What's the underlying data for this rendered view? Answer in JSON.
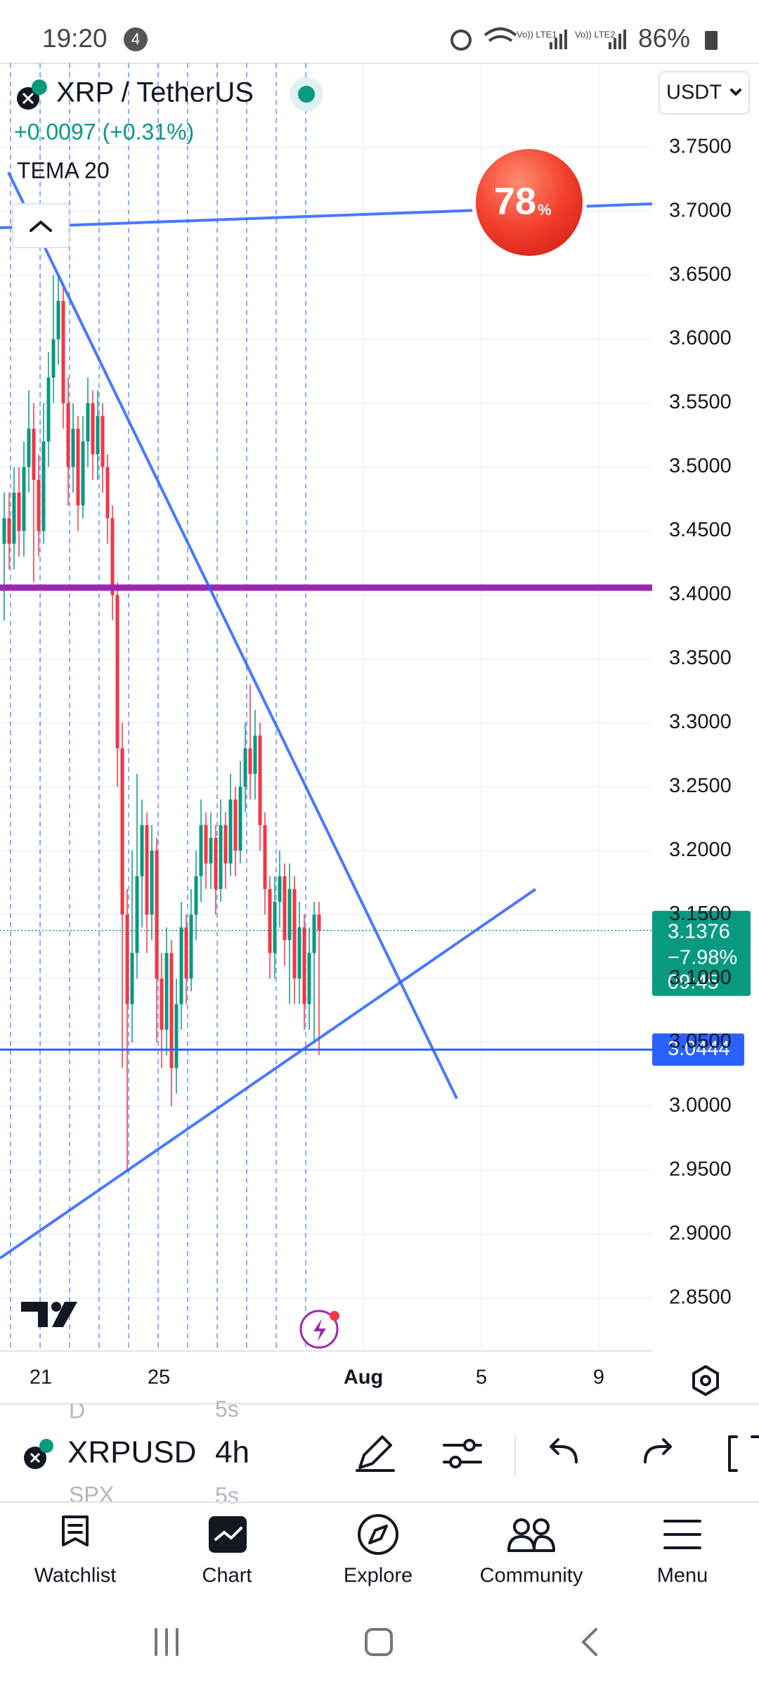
{
  "status_bar": {
    "time": "19:20",
    "notifications": "4",
    "battery": "86%"
  },
  "header": {
    "symbol": "XRP / TetherUS",
    "change": "+0.0097 (+0.31%)",
    "indicator": "TEMA 20",
    "currency": "USDT"
  },
  "badge": {
    "value": "78",
    "unit": "%"
  },
  "chart_data": {
    "type": "candlestick",
    "up_color": "#089981",
    "down_color": "#f23645",
    "open": [
      3.44,
      3.46,
      3.44,
      3.48,
      3.45,
      3.5,
      3.53,
      3.49,
      3.45,
      3.52,
      3.57,
      3.6,
      3.63,
      3.55,
      3.5,
      3.53,
      3.47,
      3.52,
      3.55,
      3.51,
      3.54,
      3.5,
      3.46,
      3.4,
      3.28,
      3.15,
      3.08,
      3.12,
      3.18,
      3.22,
      3.15,
      3.2,
      3.1,
      3.06,
      3.12,
      3.03,
      3.08,
      3.14,
      3.1,
      3.15,
      3.18,
      3.22,
      3.19,
      3.21,
      3.17,
      3.22,
      3.19,
      3.24,
      3.2,
      3.25,
      3.28,
      3.26,
      3.29,
      3.22,
      3.17,
      3.12,
      3.16,
      3.18,
      3.13,
      3.17,
      3.1,
      3.14,
      3.08,
      3.12,
      3.15
    ],
    "high": [
      3.48,
      3.48,
      3.5,
      3.5,
      3.52,
      3.56,
      3.55,
      3.51,
      3.55,
      3.59,
      3.65,
      3.65,
      3.64,
      3.57,
      3.55,
      3.54,
      3.54,
      3.57,
      3.56,
      3.56,
      3.55,
      3.51,
      3.47,
      3.41,
      3.3,
      3.17,
      3.2,
      3.26,
      3.24,
      3.23,
      3.22,
      3.21,
      3.12,
      3.14,
      3.13,
      3.1,
      3.16,
      3.15,
      3.17,
      3.2,
      3.24,
      3.23,
      3.23,
      3.22,
      3.24,
      3.23,
      3.26,
      3.25,
      3.27,
      3.3,
      3.33,
      3.31,
      3.3,
      3.23,
      3.18,
      3.18,
      3.2,
      3.19,
      3.19,
      3.18,
      3.16,
      3.15,
      3.14,
      3.16,
      3.16
    ],
    "low": [
      3.38,
      3.42,
      3.42,
      3.43,
      3.43,
      3.48,
      3.41,
      3.43,
      3.44,
      3.5,
      3.55,
      3.58,
      3.53,
      3.47,
      3.48,
      3.45,
      3.46,
      3.5,
      3.49,
      3.49,
      3.48,
      3.44,
      3.38,
      3.25,
      3.03,
      2.95,
      3.05,
      3.1,
      3.14,
      3.12,
      3.13,
      3.05,
      3.03,
      3.04,
      3.0,
      3.01,
      3.06,
      3.08,
      3.09,
      3.13,
      3.16,
      3.17,
      3.17,
      3.15,
      3.16,
      3.17,
      3.18,
      3.18,
      3.19,
      3.23,
      3.24,
      3.24,
      3.2,
      3.15,
      3.1,
      3.1,
      3.14,
      3.11,
      3.08,
      3.08,
      3.08,
      3.06,
      3.06,
      3.05,
      3.04
    ],
    "close": [
      3.46,
      3.44,
      3.48,
      3.45,
      3.5,
      3.53,
      3.49,
      3.45,
      3.52,
      3.57,
      3.6,
      3.63,
      3.55,
      3.5,
      3.53,
      3.47,
      3.52,
      3.55,
      3.51,
      3.54,
      3.5,
      3.46,
      3.4,
      3.28,
      3.15,
      3.08,
      3.12,
      3.18,
      3.22,
      3.15,
      3.2,
      3.1,
      3.06,
      3.12,
      3.03,
      3.08,
      3.14,
      3.1,
      3.15,
      3.18,
      3.22,
      3.19,
      3.21,
      3.17,
      3.22,
      3.19,
      3.24,
      3.2,
      3.25,
      3.28,
      3.26,
      3.29,
      3.22,
      3.17,
      3.12,
      3.16,
      3.18,
      3.13,
      3.17,
      3.1,
      3.14,
      3.08,
      3.12,
      3.15,
      3.1376
    ],
    "ylim": [
      2.8087,
      3.8158
    ],
    "yticks": [
      {
        "value": 3.75,
        "label": "3.7500"
      },
      {
        "value": 3.7,
        "label": "3.7000"
      },
      {
        "value": 3.65,
        "label": "3.6500"
      },
      {
        "value": 3.6,
        "label": "3.6000"
      },
      {
        "value": 3.55,
        "label": "3.5500"
      },
      {
        "value": 3.5,
        "label": "3.5000"
      },
      {
        "value": 3.45,
        "label": "3.4500"
      },
      {
        "value": 3.4,
        "label": "3.4000"
      },
      {
        "value": 3.35,
        "label": "3.3500"
      },
      {
        "value": 3.3,
        "label": "3.3000"
      },
      {
        "value": 3.25,
        "label": "3.2500"
      },
      {
        "value": 3.2,
        "label": "3.2000"
      },
      {
        "value": 3.15,
        "label": "3.1500"
      },
      {
        "value": 3.1,
        "label": "3.1000"
      },
      {
        "value": 3.05,
        "label": "3.0500"
      },
      {
        "value": 3.0,
        "label": "3.0000"
      },
      {
        "value": 2.95,
        "label": "2.9500"
      },
      {
        "value": 2.9,
        "label": "2.9000"
      },
      {
        "value": 2.85,
        "label": "2.8500"
      }
    ],
    "xtick_labels": [
      "21",
      "25",
      "Aug",
      "5",
      "9"
    ],
    "grid": true,
    "last_price": 3.1376,
    "last_change": "−7.98%",
    "countdown": "09:45",
    "line_price": 3.0444
  },
  "toolbar": {
    "symbol": "XRPUSD",
    "symbol_prev": "D",
    "symbol_next": "SPX",
    "interval": "4h",
    "interval_prev": "5s",
    "interval_next": "5s"
  },
  "nav": [
    "Watchlist",
    "Chart",
    "Explore",
    "Community",
    "Menu"
  ]
}
